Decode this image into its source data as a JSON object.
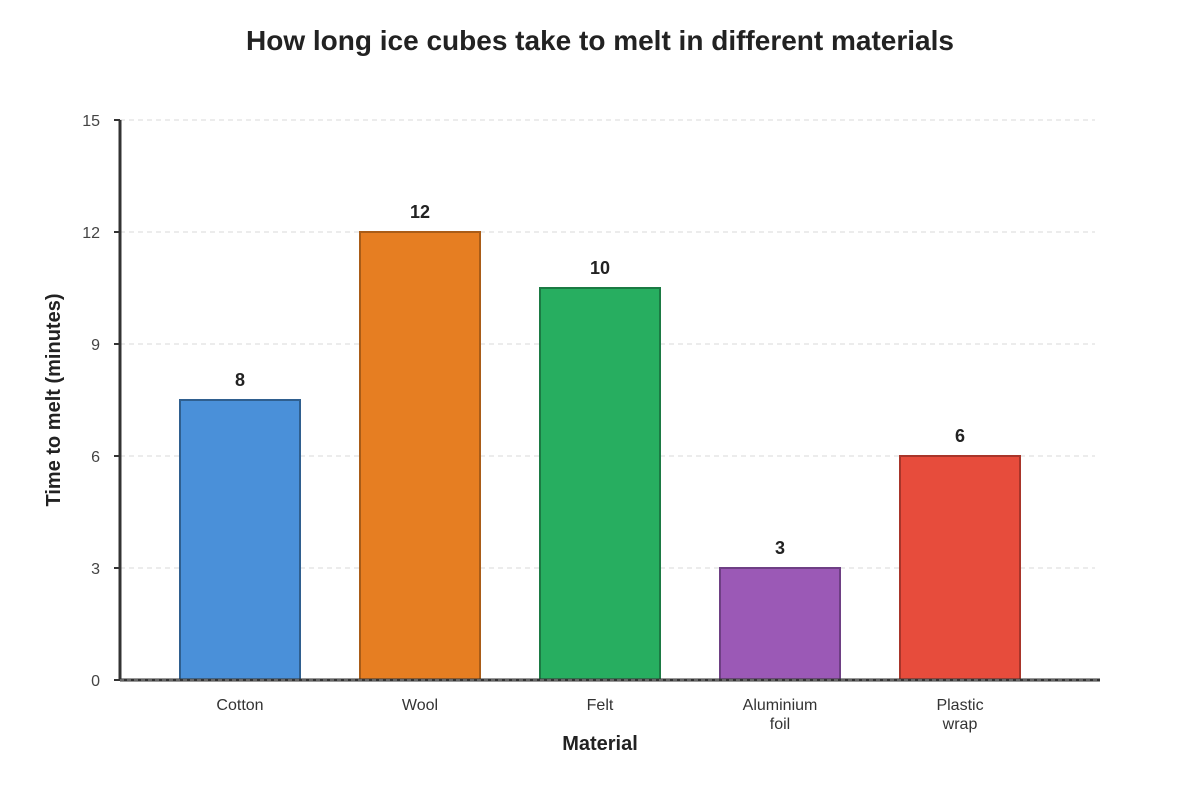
{
  "chart_data": {
    "type": "bar",
    "title": "How long ice cubes take to melt in different materials",
    "xlabel": "Material",
    "ylabel": "Time to melt (minutes)",
    "ylim": [
      0,
      15
    ],
    "yticks": [
      0,
      3,
      6,
      9,
      12,
      15
    ],
    "grid": true,
    "categories": [
      [
        "Cotton"
      ],
      [
        "Wool"
      ],
      [
        "Felt"
      ],
      [
        "Aluminium",
        "foil"
      ],
      [
        "Plastic",
        "wrap"
      ]
    ],
    "values": [
      7.5,
      12,
      10.5,
      3,
      6
    ],
    "value_labels": [
      "8",
      "12",
      "10",
      "3",
      "6"
    ],
    "colors": [
      "#4a90d9",
      "#e67e22",
      "#27ae60",
      "#9b59b6",
      "#e74c3c"
    ],
    "border_colors": [
      "#2f5f8f",
      "#a95c17",
      "#1b7a43",
      "#6e3f84",
      "#a8352a"
    ]
  }
}
